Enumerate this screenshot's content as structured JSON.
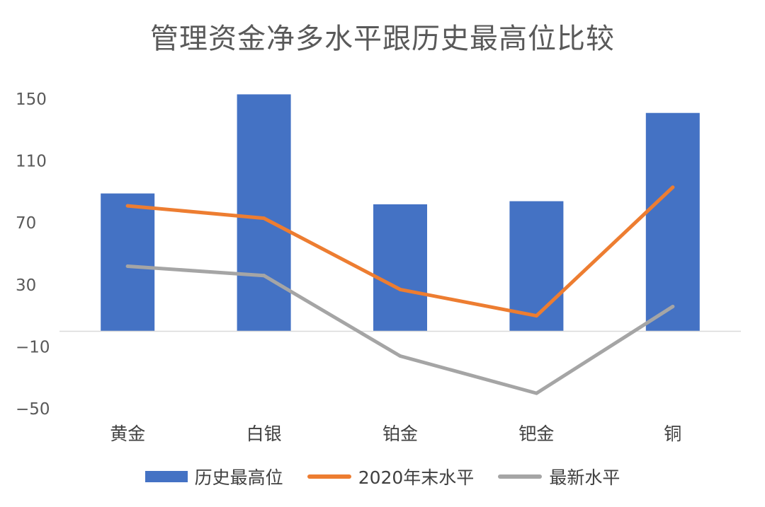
{
  "chart_data": {
    "type": "bar+line",
    "title": "管理资金净多水平跟历史最高位比较",
    "categories": [
      "黄金",
      "白银",
      "铂金",
      "钯金",
      "铜"
    ],
    "ylim": [
      -50,
      150
    ],
    "yticks": [
      150,
      110,
      70,
      30,
      -10,
      -50
    ],
    "ytick_labels": [
      "150",
      "110",
      "70",
      "30",
      "−10",
      "−50"
    ],
    "xlabel": "",
    "ylabel": "",
    "grid": false,
    "legend_position": "bottom",
    "series": [
      {
        "name": "历史最高位",
        "kind": "bar",
        "color": "#4472C4",
        "values": [
          89,
          153,
          82,
          84,
          141
        ]
      },
      {
        "name": "2020年末水平",
        "kind": "line",
        "color": "#ED7D31",
        "values": [
          81,
          73,
          27,
          10,
          93
        ]
      },
      {
        "name": "最新水平",
        "kind": "line",
        "color": "#A5A5A5",
        "values": [
          42,
          36,
          -16,
          -40,
          16
        ]
      }
    ]
  }
}
